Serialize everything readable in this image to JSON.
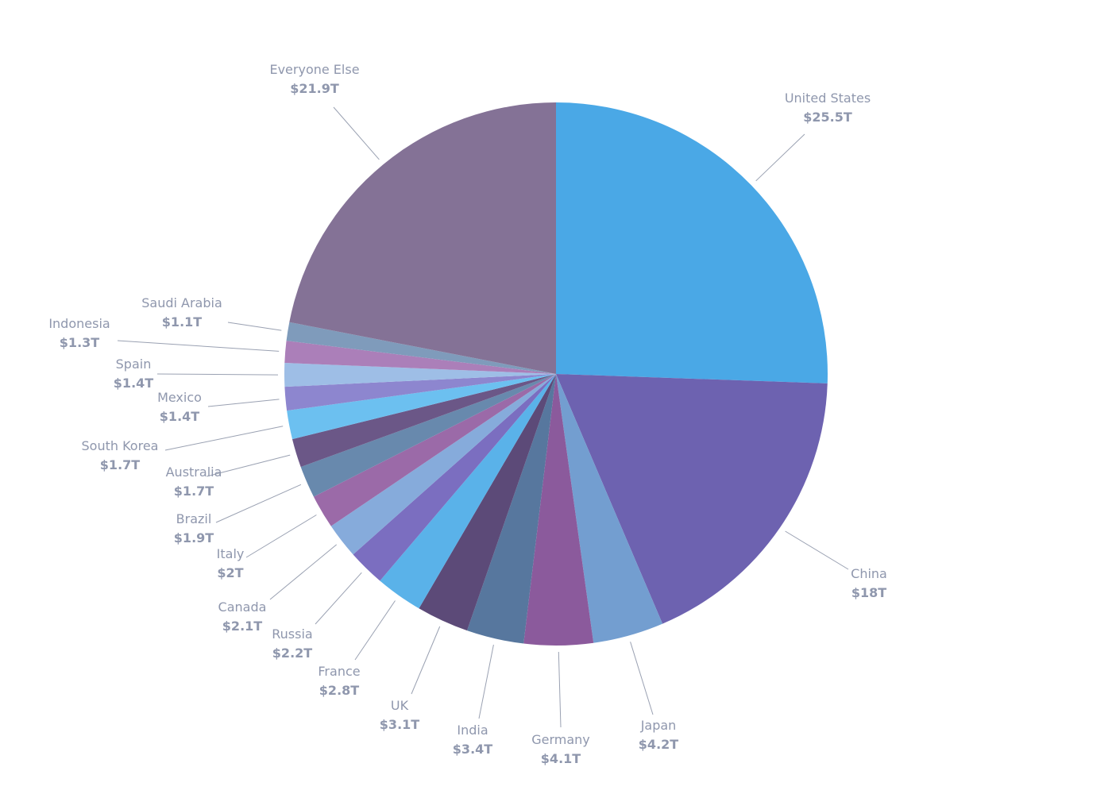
{
  "chart_data": {
    "type": "pie",
    "slices": [
      {
        "label": "United States",
        "value_label": "$25.5T",
        "value": 25.5,
        "color": "#4aa8e6"
      },
      {
        "label": "China",
        "value_label": "$18T",
        "value": 18.0,
        "color": "#6d62b0"
      },
      {
        "label": "Japan",
        "value_label": "$4.2T",
        "value": 4.2,
        "color": "#739ed0"
      },
      {
        "label": "Germany",
        "value_label": "$4.1T",
        "value": 4.1,
        "color": "#8b5a9c"
      },
      {
        "label": "India",
        "value_label": "$3.4T",
        "value": 3.4,
        "color": "#57779e"
      },
      {
        "label": "UK",
        "value_label": "$3.1T",
        "value": 3.1,
        "color": "#5c4a78"
      },
      {
        "label": "France",
        "value_label": "$2.8T",
        "value": 2.8,
        "color": "#5ab2e9"
      },
      {
        "label": "Russia",
        "value_label": "$2.2T",
        "value": 2.2,
        "color": "#7b6ec0"
      },
      {
        "label": "Canada",
        "value_label": "$2.1T",
        "value": 2.1,
        "color": "#86abdb"
      },
      {
        "label": "Italy",
        "value_label": "$2T",
        "value": 2.0,
        "color": "#9b6aa8"
      },
      {
        "label": "Brazil",
        "value_label": "$1.9T",
        "value": 1.9,
        "color": "#6889ad"
      },
      {
        "label": "Australia",
        "value_label": "$1.7T",
        "value": 1.7,
        "color": "#6b5787"
      },
      {
        "label": "South Korea",
        "value_label": "$1.7T",
        "value": 1.7,
        "color": "#6cc0f0"
      },
      {
        "label": "Mexico",
        "value_label": "$1.4T",
        "value": 1.4,
        "color": "#8d86cf"
      },
      {
        "label": "Spain",
        "value_label": "$1.4T",
        "value": 1.4,
        "color": "#9ebee6"
      },
      {
        "label": "Indonesia",
        "value_label": "$1.3T",
        "value": 1.3,
        "color": "#ab7fb9"
      },
      {
        "label": "Saudi Arabia",
        "value_label": "$1.1T",
        "value": 1.1,
        "color": "#7f9bbb"
      },
      {
        "label": "Everyone Else",
        "value_label": "$21.9T",
        "value": 21.9,
        "color": "#847296"
      }
    ]
  }
}
